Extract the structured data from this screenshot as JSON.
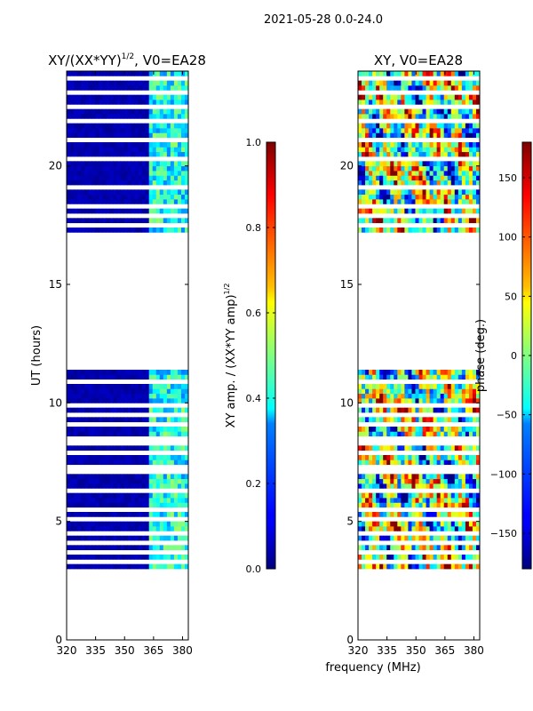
{
  "figure": {
    "suptitle": "2021-05-28 0.0-24.0",
    "xlabel": "frequency (MHz)",
    "ylabel": "UT (hours)"
  },
  "chart_data": [
    {
      "type": "heatmap",
      "title": "XY/(XX*YY)",
      "title_exponent": "1/2",
      "title_suffix": ", V0=EA28",
      "xlim": [
        320,
        383
      ],
      "ylim": [
        0,
        24
      ],
      "xticks": [
        320,
        335,
        350,
        365,
        380
      ],
      "yticks": [
        0,
        5,
        10,
        15,
        20
      ],
      "colorbar": {
        "label": "XY amp. / (XX*YY amp)",
        "label_exponent": "1/2",
        "range": [
          0.0,
          1.0
        ],
        "ticks": [
          "0.0",
          "0.2",
          "0.4",
          "0.6",
          "0.8",
          "1.0"
        ]
      },
      "data_blocks_hours": [
        [
          3.0,
          11.6
        ],
        [
          17.2,
          24.0
        ]
      ],
      "gap_rows_hours": [
        3.3,
        3.7,
        4.1,
        4.6,
        5.2,
        5.6,
        6.4,
        7.1,
        7.4,
        7.9,
        8.3,
        8.6,
        9.1,
        9.5,
        9.8,
        10.8,
        11.5,
        17.5,
        17.9,
        18.3,
        19.1,
        20.3,
        21.1,
        21.9,
        22.5,
        23.0,
        23.6
      ],
      "note": "amplitude ~0.0 for 320-362 MHz, ~0.2-0.5 for 362-383 MHz"
    },
    {
      "type": "heatmap",
      "title": "XY, V0=EA28",
      "xlim": [
        320,
        383
      ],
      "ylim": [
        0,
        24
      ],
      "xticks": [
        320,
        335,
        350,
        365,
        380
      ],
      "yticks": [
        0,
        5,
        10,
        15,
        20
      ],
      "colorbar": {
        "label": "phase (deg.)",
        "range": [
          -180,
          180
        ],
        "ticks": [
          "-150",
          "-100",
          "-50",
          "0",
          "50",
          "100",
          "150"
        ]
      },
      "data_blocks_hours": [
        [
          3.0,
          11.6
        ],
        [
          17.2,
          24.0
        ]
      ],
      "gap_rows_hours": [
        3.3,
        3.7,
        4.1,
        4.6,
        5.2,
        5.6,
        6.4,
        7.1,
        7.4,
        7.9,
        8.3,
        8.6,
        9.1,
        9.5,
        9.8,
        10.8,
        11.5,
        17.5,
        17.9,
        18.3,
        19.1,
        20.3,
        21.1,
        21.9,
        22.5,
        23.0,
        23.6
      ],
      "note": "phase noisy, spanning full -180 to 180 range"
    }
  ]
}
